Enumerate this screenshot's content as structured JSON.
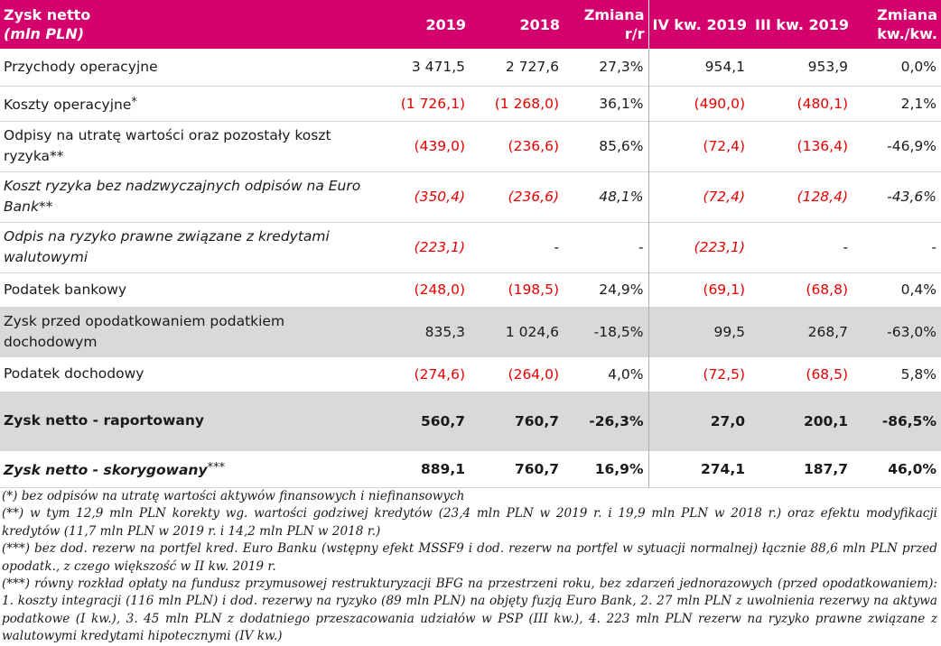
{
  "header": {
    "label_line1": "Zysk netto",
    "label_line2": "(mln PLN)",
    "col_2019": "2019",
    "col_2018": "2018",
    "col_change_yoy_line1": "Zmiana",
    "col_change_yoy_line2": "r/r",
    "col_q4_2019": "IV kw. 2019",
    "col_q3_2019": "III kw. 2019",
    "col_change_qoq_line1": "Zmiana",
    "col_change_qoq_line2": "kw./kw."
  },
  "rows": [
    {
      "label": "Przychody operacyjne",
      "sup": "",
      "v2019": "3 471,5",
      "v2018": "2 727,6",
      "yoy": "27,3%",
      "q4": "954,1",
      "q3": "953,9",
      "qoq": "0,0%"
    },
    {
      "label": "Koszty operacyjne",
      "sup": "*",
      "v2019": "(1 726,1)",
      "v2018": "(1 268,0)",
      "yoy": "36,1%",
      "q4": "(490,0)",
      "q3": "(480,1)",
      "qoq": "2,1%"
    },
    {
      "label": "Odpisy na utratę wartości oraz pozostały koszt ryzyka**",
      "sup": "",
      "v2019": "(439,0)",
      "v2018": "(236,6)",
      "yoy": "85,6%",
      "q4": "(72,4)",
      "q3": "(136,4)",
      "qoq": "-46,9%"
    },
    {
      "label": "Koszt ryzyka bez nadzwyczajnych odpisów na Euro Bank**",
      "sup": "",
      "v2019": "(350,4)",
      "v2018": "(236,6)",
      "yoy": "48,1%",
      "q4": "(72,4)",
      "q3": "(128,4)",
      "qoq": "-43,6%"
    },
    {
      "label": "Odpis na ryzyko prawne związane z kredytami walutowymi",
      "sup": "",
      "v2019": "(223,1)",
      "v2018": "-",
      "yoy": "-",
      "q4": "(223,1)",
      "q3": "-",
      "qoq": "-"
    },
    {
      "label": "Podatek bankowy",
      "sup": "",
      "v2019": "(248,0)",
      "v2018": "(198,5)",
      "yoy": "24,9%",
      "q4": "(69,1)",
      "q3": "(68,8)",
      "qoq": "0,4%"
    },
    {
      "label": "Zysk przed opodatkowaniem podatkiem dochodowym",
      "sup": "",
      "v2019": "835,3",
      "v2018": "1 024,6",
      "yoy": "-18,5%",
      "q4": "99,5",
      "q3": "268,7",
      "qoq": "-63,0%"
    },
    {
      "label": "Podatek dochodowy",
      "sup": "",
      "v2019": "(274,6)",
      "v2018": "(264,0)",
      "yoy": "4,0%",
      "q4": "(72,5)",
      "q3": "(68,5)",
      "qoq": "5,8%"
    },
    {
      "label": "Zysk netto - raportowany",
      "sup": "",
      "v2019": "560,7",
      "v2018": "760,7",
      "yoy": "-26,3%",
      "q4": "27,0",
      "q3": "200,1",
      "qoq": "-86,5%"
    },
    {
      "label": "Zysk netto - skorygowany",
      "sup": "***",
      "v2019": "889,1",
      "v2018": "760,7",
      "yoy": "16,9%",
      "q4": "274,1",
      "q3": "187,7",
      "qoq": "46,0%"
    }
  ],
  "notes": [
    "(*) bez odpisów na utratę wartości aktywów finansowych i niefinansowych",
    "(**) w tym 12,9 mln PLN korekty wg. wartości godziwej kredytów (23,4 mln PLN w 2019 r. i 19,9 mln PLN w 2018 r.) oraz efektu modyfikacji kredytów (11,7 mln PLN w 2019 r. i 14,2 mln PLN w 2018 r.)",
    "(***) bez dod. rezerw na portfel kred. Euro Banku (wstępny efekt MSSF9 i dod. rezerw na portfel w sytuacji normalnej) łącznie 88,6 mln PLN przed opodatk., z czego większość w II kw. 2019 r.",
    "(***) równy rozkład opłaty na fundusz przymusowej restrukturyzacji BFG na przestrzeni roku, bez zdarzeń jednorazowych (przed opodatkowaniem): 1. koszty integracji (116 mln PLN) i dod. rezerwy na ryzyko (89 mln PLN) na objęty fuzją Euro Bank,  2. 27 mln PLN z uwolnienia rezerwy na aktywa podatkowe (I kw.),  3. 45 mln PLN z dodatniego przeszacowania udziałów w PSP (III kw.),  4. 223 mln PLN rezerw na ryzyko prawne związane z walutowymi kredytami hipotecznymi  (IV kw.)"
  ],
  "colors": {
    "header_bg": "#d4006e",
    "negative": "#e60000",
    "highlight_row": "#d9d9d9"
  }
}
